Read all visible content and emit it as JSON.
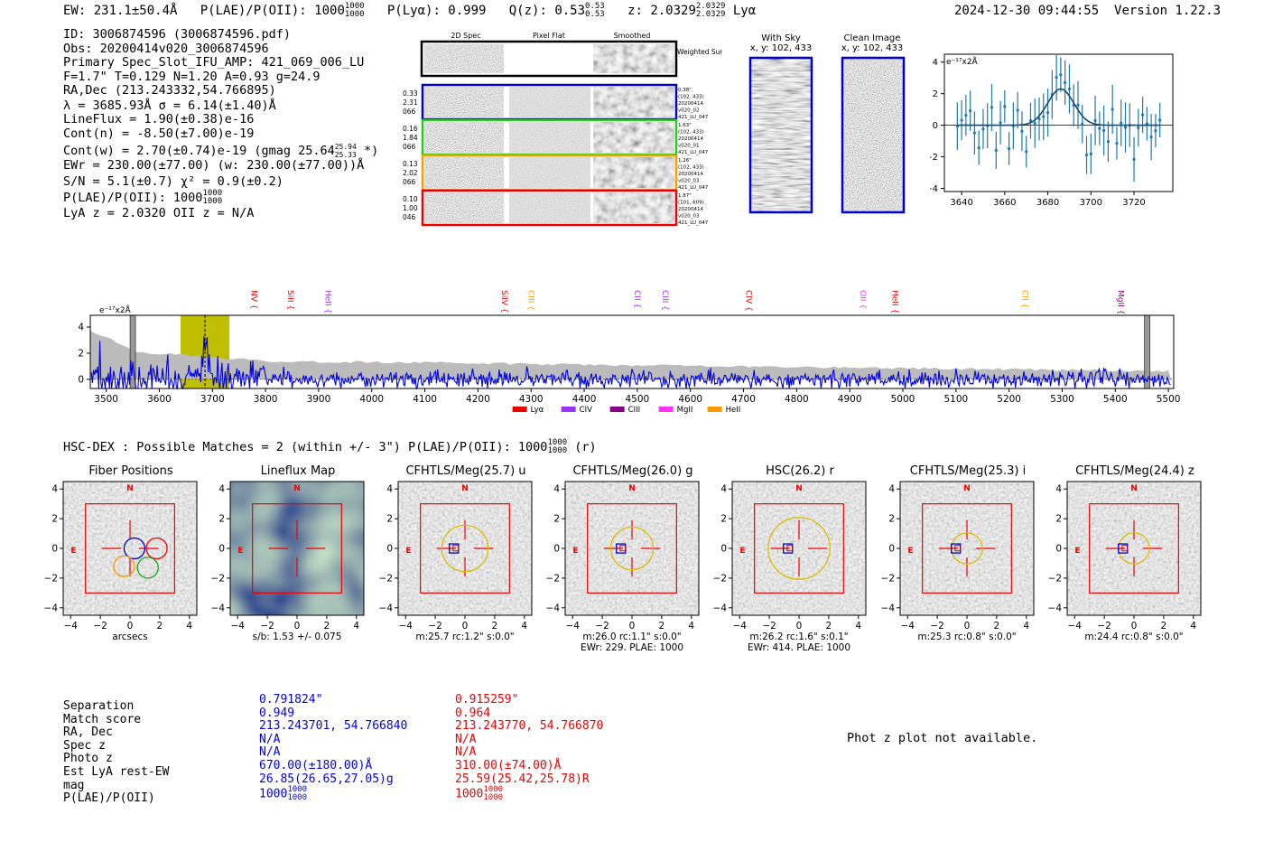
{
  "header": {
    "ew": "EW: 231.1±50.4Å",
    "plae_label": "P(LAE)/P(OII): 1000",
    "plae_hi": "1000",
    "plae_lo": "1000",
    "plya": "P(Lyα): 0.999",
    "qz_label": "Q(z): 0.53",
    "qz_hi": "0.53",
    "qz_lo": "0.53",
    "z_label": "z: 2.0329",
    "z_hi": "2.0329",
    "z_lo": "2.0329",
    "z_line": "Lyα",
    "timestamp": "2024-12-30 09:44:55",
    "version": "Version 1.22.3"
  },
  "info": {
    "l1": "ID: 3006874596 (3006874596.pdf)",
    "l2": "Obs: 20200414v020_3006874596",
    "l3": "Primary Spec_Slot_IFU_AMP: 421_069_006_LU",
    "l4": "F=1.7\"  T=0.129  N=1.20  A=0.93  g=24.9",
    "l5": "RA,Dec (213.243332,54.766895)",
    "l6": "λ = 3685.93Å   σ = 6.14(±1.40)Å",
    "l7": "LineFlux = 1.90(±0.38)e-16",
    "l8": "Cont(n) = -8.50(±7.00)e-19",
    "l9": "Cont(w) = 2.70(±0.74)e-19 (gmag 25.64",
    "l9_hi": "25.94",
    "l9_lo": "25.33",
    "l9_end": "*)",
    "l10": "EWr = 230.00(±77.00) (w: 230.00(±77.00))Å",
    "l11": "S/N = 5.1(±0.7)   χ² = 0.9(±0.2)",
    "l12": "P(LAE)/P(OII): 1000",
    "l12_hi": "1000",
    "l12_lo": "1000",
    "l13": "LyA z = 2.0320   OII z = N/A"
  },
  "cutouts": {
    "col_headers": [
      "2D Spec",
      "Pixel Flat",
      "Smoothed"
    ],
    "weighted_sum": "Weighted Sum",
    "rows": [
      {
        "left": [
          "0.33",
          "2.31",
          "066"
        ],
        "right": [
          "0.38\"",
          "(102, 433)",
          "20200414",
          "v020_02",
          "421_LU_047"
        ],
        "color": "#0000cc"
      },
      {
        "left": [
          "0.16",
          "1.84",
          "066"
        ],
        "right": [
          "1.63\"",
          "(102, 433)",
          "20200414",
          "v020_01",
          "421_LU_047"
        ],
        "color": "#22cc22"
      },
      {
        "left": [
          "0.13",
          "2.02",
          "066"
        ],
        "right": [
          "1.26\"",
          "(102, 433)",
          "20200414",
          "v020_03",
          "421_LU_047"
        ],
        "color": "#ff9900"
      },
      {
        "left": [
          "0.10",
          "1.00",
          "046"
        ],
        "right": [
          "1.87\"",
          "(101, 609)",
          "20200414",
          "v020_03",
          "421_LU_047"
        ],
        "color": "#ee0000"
      }
    ]
  },
  "sky": {
    "with_sky": "With Sky",
    "with_sky_xy": "x, y: 102, 433",
    "clean": "Clean Image",
    "clean_xy": "x, y: 102, 433"
  },
  "zoom_plot": {
    "ylabel": "e⁻¹⁷x2Å",
    "xticks": [
      "3640",
      "3660",
      "3680",
      "3700",
      "3720"
    ],
    "yticks": [
      "4",
      "2",
      "0",
      "−2",
      "−4"
    ]
  },
  "spectrum": {
    "ylabel": "e⁻¹⁷x2Å",
    "xticks": [
      "3500",
      "3600",
      "3700",
      "3800",
      "3900",
      "4000",
      "4100",
      "4200",
      "4300",
      "4400",
      "4500",
      "4600",
      "4700",
      "4800",
      "4900",
      "5000",
      "5100",
      "5200",
      "5300",
      "5400",
      "5500"
    ],
    "yticks": [
      "4",
      "2",
      "0"
    ],
    "lines": [
      {
        "label": "NV",
        "color": "#ee0000",
        "x": 3768
      },
      {
        "label": "SiII",
        "color": "#ee0000",
        "x": 3837
      },
      {
        "label": "HeII",
        "color": "#9933ff",
        "x": 3908
      },
      {
        "label": "SiIV",
        "color": "#ee0000",
        "x": 4240
      },
      {
        "label": "CIII",
        "color": "#ff9900",
        "x": 4290
      },
      {
        "label": "CII",
        "color": "#9933ff",
        "x": 4490
      },
      {
        "label": "CIII",
        "color": "#9933ff",
        "x": 4543
      },
      {
        "label": "CIV",
        "color": "#ee0000",
        "x": 4700
      },
      {
        "label": "OII",
        "color": "#ff33ff",
        "x": 4915
      },
      {
        "label": "HeII",
        "color": "#ee0000",
        "x": 4975
      },
      {
        "label": "CII",
        "color": "#ff9900",
        "x": 5220
      },
      {
        "label": "MgII",
        "color": "#880088",
        "x": 5400
      }
    ],
    "legend": [
      {
        "label": "Lyα",
        "color": "#ee0000"
      },
      {
        "label": "CIV",
        "color": "#9933ff"
      },
      {
        "label": "CIII",
        "color": "#880088"
      },
      {
        "label": "MgII",
        "color": "#ff33ff"
      },
      {
        "label": "HeII",
        "color": "#ff9900"
      }
    ]
  },
  "hsc": {
    "title": "HSC-DEX : Possible Matches = 2 (within +/- 3\")  P(LAE)/P(OII): 1000",
    "frac_hi": "1000",
    "frac_lo": "1000",
    "band": "(r)"
  },
  "panels": [
    {
      "title": "Fiber Positions",
      "caption": "arcsecs",
      "caption2": ""
    },
    {
      "title": "Lineflux Map",
      "caption": "s/b: 1.53 +/- 0.075",
      "caption2": ""
    },
    {
      "title": "CFHTLS/Meg(25.7) u",
      "caption": "m:25.7 rc:1.2\"  s:0.0\"",
      "caption2": ""
    },
    {
      "title": "CFHTLS/Meg(26.0) g",
      "caption": "m:26.0 rc:1.1\"  s:0.0\"",
      "caption2": "EWr: 229, PLAE: 1000"
    },
    {
      "title": "HSC(26.2) r",
      "caption": "m:26.2 rc:1.6\"  s:0.1\"",
      "caption2": "EWr: 414, PLAE: 1000"
    },
    {
      "title": "CFHTLS/Meg(25.3) i",
      "caption": "m:25.3 rc:0.8\"  s:0.0\"",
      "caption2": ""
    },
    {
      "title": "CFHTLS/Meg(24.4) z",
      "caption": "m:24.4 rc:0.8\"  s:0.0\"",
      "caption2": ""
    }
  ],
  "panel_axes": {
    "ticks": [
      "4",
      "2",
      "0",
      "−2",
      "−4"
    ],
    "xticks": [
      "−4",
      "−2",
      "0",
      "2",
      "4"
    ],
    "north": "N",
    "east": "E"
  },
  "matches": {
    "labels": [
      "Separation",
      "Match score",
      "RA, Dec",
      "Spec z",
      "Photo z",
      "Est LyA rest-EW",
      "mag",
      "P(LAE)/P(OII)"
    ],
    "m1": [
      "0.791824\"",
      "0.949",
      "213.243701, 54.766840",
      "N/A",
      "N/A",
      "670.00(±180.00)Å",
      "26.85(26.65,27.05)g",
      "1000"
    ],
    "m2": [
      "0.915259\"",
      "0.964",
      "213.243770, 54.766870",
      "N/A",
      "N/A",
      "310.00(±74.00)Å",
      "25.59(25.42,25.78)R",
      "1000"
    ],
    "frac_hi": "1000",
    "frac_lo": "1000",
    "photz_note": "Phot z plot not available."
  }
}
